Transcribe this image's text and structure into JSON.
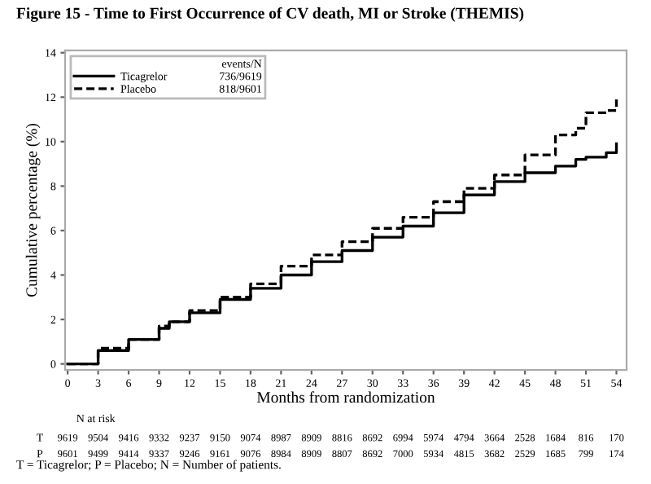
{
  "chart_data": {
    "type": "step",
    "title": "Figure 15 - Time to First Occurrence of CV death, MI or Stroke (THEMIS)",
    "xlabel": "Months from randomization",
    "ylabel": "Cumulative percentage (%)",
    "legend_title": "events/N",
    "x": [
      0,
      3,
      6,
      9,
      10,
      12,
      15,
      18,
      21,
      24,
      27,
      30,
      33,
      36,
      39,
      42,
      45,
      48,
      50,
      51,
      53,
      54
    ],
    "series": [
      {
        "name": "Ticagrelor",
        "color": "#000000",
        "line_style": "solid",
        "values": [
          0,
          0.6,
          1.1,
          1.6,
          1.9,
          2.3,
          2.9,
          3.4,
          4.0,
          4.6,
          5.1,
          5.7,
          6.2,
          6.8,
          7.6,
          8.2,
          8.6,
          8.9,
          9.2,
          9.3,
          9.5,
          9.9
        ]
      },
      {
        "name": "Placebo",
        "color": "#000000",
        "line_style": "dashed",
        "values": [
          0,
          0.7,
          1.1,
          1.7,
          1.9,
          2.4,
          3.0,
          3.6,
          4.4,
          4.9,
          5.5,
          6.1,
          6.6,
          7.3,
          7.9,
          8.5,
          9.4,
          10.3,
          10.6,
          11.3,
          11.4,
          11.9
        ]
      }
    ],
    "xlim": [
      -0.25,
      55
    ],
    "xticks": [
      0,
      3,
      6,
      9,
      12,
      15,
      18,
      21,
      24,
      27,
      30,
      33,
      36,
      39,
      42,
      45,
      48,
      51,
      54
    ],
    "ylim": [
      -0.27,
      14.1
    ],
    "yticks": [
      0,
      2,
      4,
      6,
      8,
      10,
      12,
      14
    ],
    "grid": false,
    "legend": "top left",
    "marker": "none",
    "annotations": [
      "736/9619",
      "818/9601",
      "N at risk",
      "T",
      "9619",
      "9504",
      "9416",
      "9332",
      "9237",
      "9150",
      "9074",
      "8987",
      "8909",
      "8816",
      "8692",
      "6994",
      "5974",
      "4794",
      "3664",
      "2528",
      "1684",
      "816",
      "170",
      "P",
      "9601",
      "9499",
      "9414",
      "9337",
      "9246",
      "9161",
      "9076",
      "8984",
      "8909",
      "8807",
      "8692",
      "7000",
      "5934",
      "4815",
      "3682",
      "2529",
      "1685",
      "799",
      "174",
      "T = Ticagrelor; P = Placebo; N = Number of patients."
    ]
  }
}
